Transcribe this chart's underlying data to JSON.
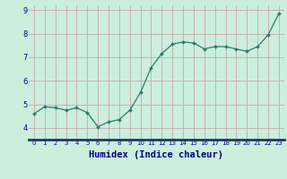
{
  "x": [
    0,
    1,
    2,
    3,
    4,
    5,
    6,
    7,
    8,
    9,
    10,
    11,
    12,
    13,
    14,
    15,
    16,
    17,
    18,
    19,
    20,
    21,
    22,
    23
  ],
  "y": [
    4.6,
    4.9,
    4.85,
    4.75,
    4.85,
    4.65,
    4.05,
    4.25,
    4.35,
    4.75,
    5.5,
    6.55,
    7.15,
    7.55,
    7.65,
    7.6,
    7.35,
    7.45,
    7.45,
    7.35,
    7.25,
    7.45,
    7.95,
    8.85
  ],
  "line_color": "#267d6e",
  "marker_color": "#267d6e",
  "bg_color": "#cceedd",
  "grid_color": "#c8a8a8",
  "xlabel": "Humidex (Indice chaleur)",
  "xlabel_color": "#000080",
  "xlabel_fontsize": 7.5,
  "tick_label_color": "#000080",
  "ylim": [
    3.5,
    9.2
  ],
  "xlim": [
    -0.5,
    23.5
  ],
  "yticks": [
    4,
    5,
    6,
    7,
    8,
    9
  ],
  "xticks": [
    0,
    1,
    2,
    3,
    4,
    5,
    6,
    7,
    8,
    9,
    10,
    11,
    12,
    13,
    14,
    15,
    16,
    17,
    18,
    19,
    20,
    21,
    22,
    23
  ]
}
